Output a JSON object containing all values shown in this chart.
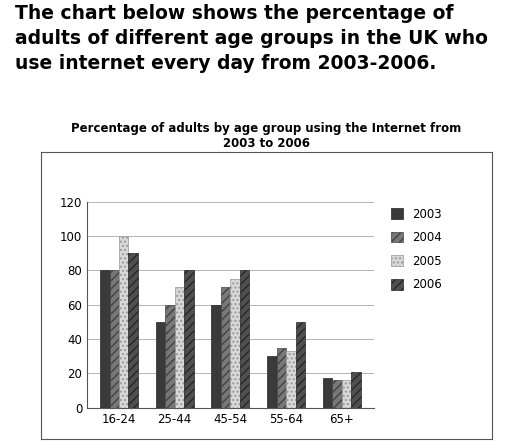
{
  "title": "Percentage of adults by age group using the Internet from\n2003 to 2006",
  "categories": [
    "16-24",
    "25-44",
    "45-54",
    "55-64",
    "65+"
  ],
  "years": [
    "2003",
    "2004",
    "2005",
    "2006"
  ],
  "values": {
    "2003": [
      80,
      50,
      60,
      30,
      17
    ],
    "2004": [
      80,
      60,
      70,
      35,
      16
    ],
    "2005": [
      100,
      70,
      75,
      33,
      16
    ],
    "2006": [
      90,
      80,
      80,
      50,
      21
    ]
  },
  "ylim": [
    0,
    120
  ],
  "yticks": [
    0,
    20,
    40,
    60,
    80,
    100,
    120
  ],
  "title_fontsize": 8.5,
  "tick_fontsize": 8.5,
  "legend_fontsize": 8.5,
  "background_color": "#ffffff",
  "outer_title": "The chart below shows the percentage of\nadults of different age groups in the UK who\nuse internet every day from 2003-2006.",
  "outer_title_fontsize": 13.5,
  "bar_styles": [
    {
      "color": "#3a3a3a",
      "hatch": "",
      "edgecolor": "#222222"
    },
    {
      "color": "#787878",
      "hatch": "////",
      "edgecolor": "#444444"
    },
    {
      "color": "#d8d8d8",
      "hatch": "....",
      "edgecolor": "#999999"
    },
    {
      "color": "#505050",
      "hatch": "////",
      "edgecolor": "#282828"
    }
  ]
}
